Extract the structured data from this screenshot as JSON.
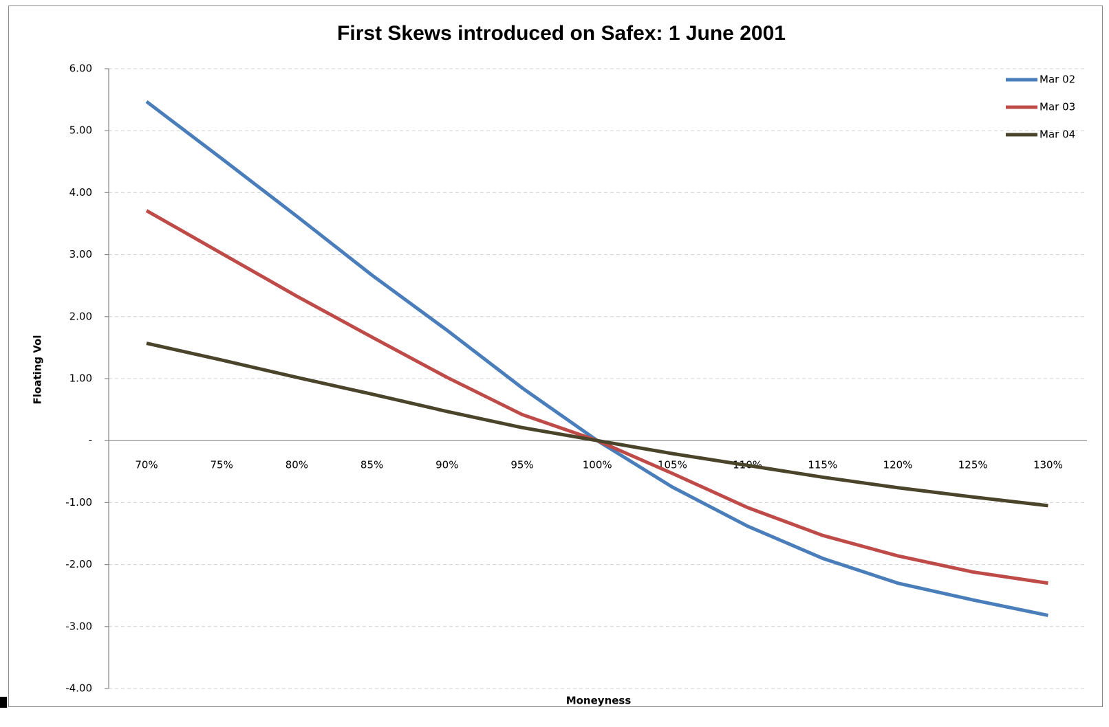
{
  "chart_data": {
    "type": "line",
    "title": "First Skews introduced on Safex: 1 June 2001",
    "x_label": "Moneyness",
    "y_label": "Floating Vol",
    "categories": [
      "70%",
      "75%",
      "80%",
      "85%",
      "90%",
      "95%",
      "100%",
      "105%",
      "110%",
      "115%",
      "120%",
      "125%",
      "130%"
    ],
    "series": [
      {
        "name": "Mar 02",
        "color": "#4a7ebb",
        "values": [
          5.47,
          4.55,
          3.62,
          2.67,
          1.78,
          0.85,
          0,
          -0.75,
          -1.38,
          -1.9,
          -2.3,
          -2.57,
          -2.82
        ]
      },
      {
        "name": "Mar 03",
        "color": "#be4b48",
        "values": [
          3.71,
          3.02,
          2.33,
          1.67,
          1.02,
          0.42,
          0,
          -0.53,
          -1.08,
          -1.53,
          -1.86,
          -2.12,
          -2.3
        ]
      },
      {
        "name": "Mar 04",
        "color": "#4a452a",
        "values": [
          1.57,
          1.3,
          1.02,
          0.75,
          0.47,
          0.21,
          0,
          -0.21,
          -0.4,
          -0.59,
          -0.76,
          -0.91,
          -1.05
        ]
      }
    ],
    "ylim": [
      -4,
      6
    ],
    "yticks": [
      {
        "value": 6,
        "label": "6.00"
      },
      {
        "value": 5,
        "label": "5.00"
      },
      {
        "value": 4,
        "label": "4.00"
      },
      {
        "value": 3,
        "label": "3.00"
      },
      {
        "value": 2,
        "label": "2.00"
      },
      {
        "value": 1,
        "label": "1.00"
      },
      {
        "value": 0,
        "label": "-"
      },
      {
        "value": -1,
        "label": "-1.00"
      },
      {
        "value": -2,
        "label": "-2.00"
      },
      {
        "value": -3,
        "label": "-3.00"
      },
      {
        "value": -4,
        "label": "-4.00"
      }
    ],
    "grid": true,
    "legend": "top-right"
  }
}
